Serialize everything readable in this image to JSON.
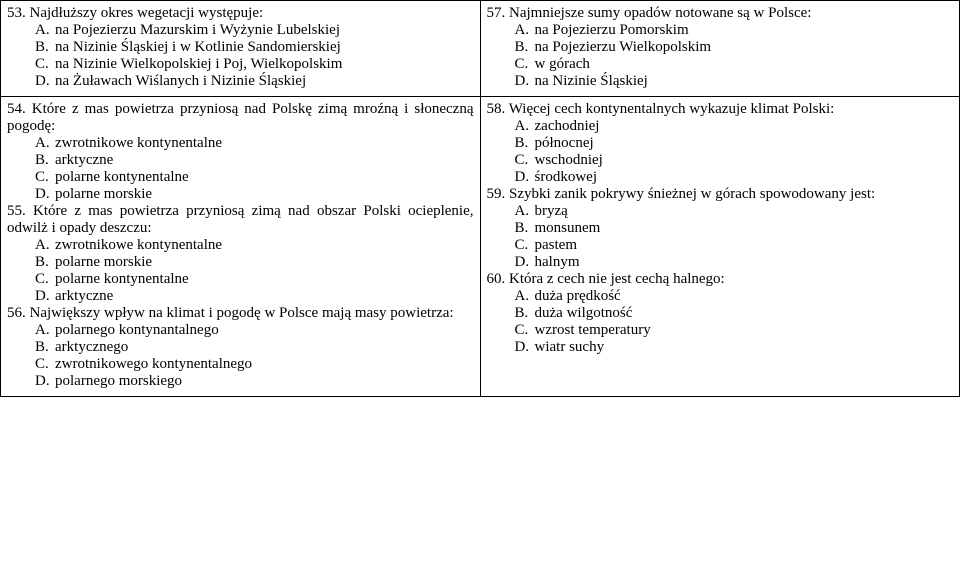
{
  "row1": {
    "left": {
      "num": "53.",
      "text": "Najdłuższy okres wegetacji występuje:",
      "opts": [
        "na Pojezierzu Mazurskim i Wyżynie Lubelskiej",
        "na Nizinie Śląskiej i w Kotlinie Sandomierskiej",
        "na Nizinie Wielkopolskiej i Poj, Wielkopolskim",
        "na Żuławach Wiślanych i Nizinie Śląskiej"
      ]
    },
    "right": {
      "num": "57.",
      "text": "Najmniejsze sumy opadów notowane są w Polsce:",
      "opts": [
        "na Pojezierzu Pomorskim",
        "na Pojezierzu Wielkopolskim",
        "w górach",
        "na Nizinie Śląskiej"
      ]
    }
  },
  "row2": {
    "left": {
      "q54": {
        "num": "54.",
        "text": "Które z mas powietrza przyniosą nad Polskę zimą mroźną i słoneczną pogodę:",
        "opts": [
          "zwrotnikowe kontynentalne",
          "arktyczne",
          "polarne kontynentalne",
          "polarne morskie"
        ]
      },
      "q55": {
        "num": "55.",
        "text": "Które z mas powietrza przyniosą zimą nad obszar Polski ocieplenie, odwilż i opady deszczu:",
        "opts": [
          "zwrotnikowe kontynentalne",
          "polarne morskie",
          "polarne kontynentalne",
          "arktyczne"
        ]
      },
      "q56": {
        "num": "56.",
        "text": "Największy wpływ na klimat i pogodę w Polsce mają masy powietrza:",
        "opts": [
          "polarnego kontynantalnego",
          "arktycznego",
          "zwrotnikowego kontynentalnego",
          "polarnego morskiego"
        ]
      }
    },
    "right": {
      "q58": {
        "num": "58.",
        "text": "Więcej cech kontynentalnych wykazuje klimat Polski:",
        "opts": [
          "zachodniej",
          "północnej",
          "wschodniej",
          "środkowej"
        ]
      },
      "q59": {
        "num": "59.",
        "text": "Szybki zanik pokrywy śnieżnej w górach spowodowany jest:",
        "opts": [
          "bryzą",
          "monsunem",
          "pastem",
          "halnym"
        ]
      },
      "q60": {
        "num": "60.",
        "text": "Która z cech nie jest cechą halnego:",
        "opts": [
          "duża prędkość",
          "duża wilgotność",
          "wzrost temperatury",
          "wiatr suchy"
        ]
      }
    }
  },
  "letters": [
    "A.",
    "B.",
    "C.",
    "D."
  ]
}
